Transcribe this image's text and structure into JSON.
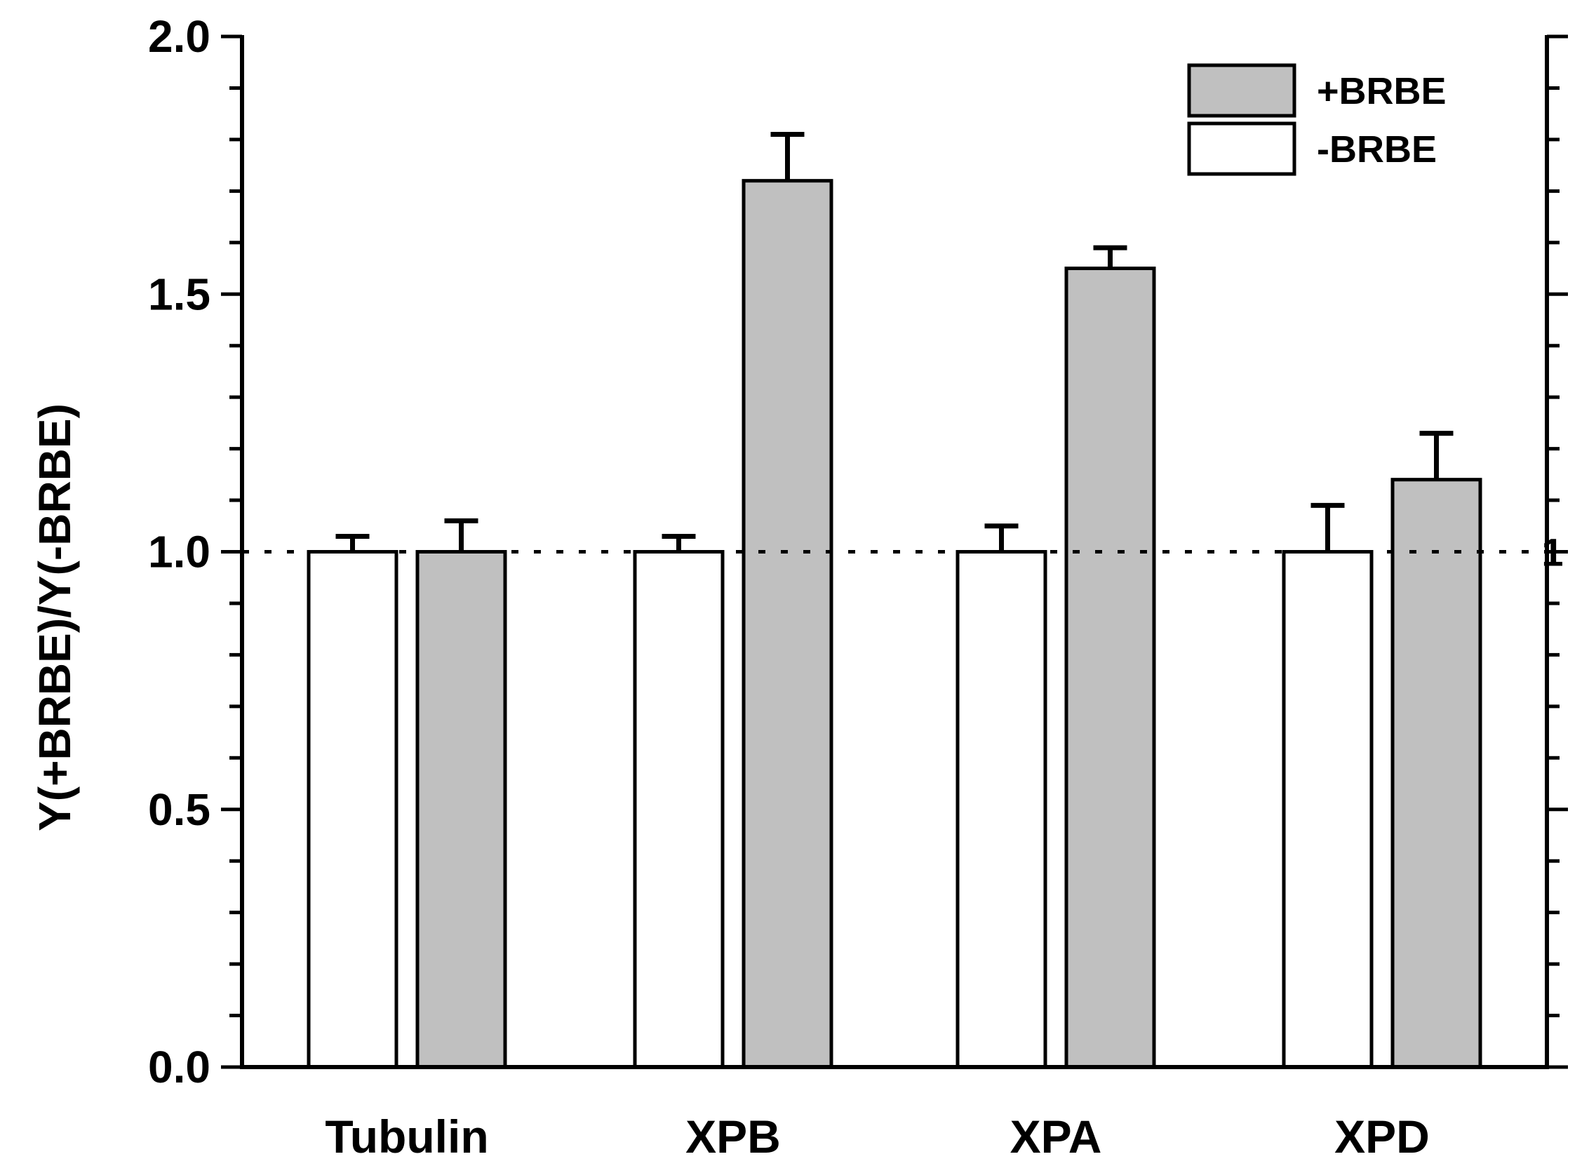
{
  "chart_data": {
    "type": "bar",
    "title": "",
    "xlabel": "",
    "ylabel": "Y(+BRBE)/Y(-BRBE)",
    "ylim": [
      0.0,
      2.0
    ],
    "yticks": [
      "0.0",
      "0.5",
      "1.0",
      "1.5",
      "2.0"
    ],
    "y_minor_step": 0.1,
    "grid": false,
    "categories": [
      "Tubulin",
      "XPB",
      "XPA",
      "XPD"
    ],
    "series": [
      {
        "name": "-BRBE",
        "color": "#ffffff",
        "values": [
          1.0,
          1.0,
          1.0,
          1.0
        ],
        "errors": [
          0.03,
          0.03,
          0.05,
          0.09
        ]
      },
      {
        "name": "+BRBE",
        "color": "#c0c0c0",
        "values": [
          1.0,
          1.72,
          1.55,
          1.14
        ],
        "errors": [
          0.06,
          0.09,
          0.04,
          0.09
        ]
      }
    ],
    "reference_line": {
      "value": 1.0,
      "style": "dotted",
      "label": "1"
    },
    "legend": {
      "position": "top-right",
      "entries": [
        {
          "label": "+BRBE",
          "color": "#c0c0c0"
        },
        {
          "label": "-BRBE",
          "color": "#ffffff"
        }
      ]
    }
  }
}
